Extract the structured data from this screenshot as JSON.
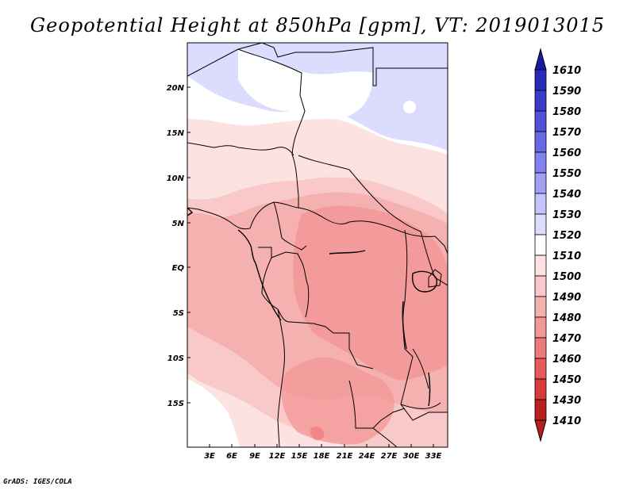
{
  "title": "Geopotential Height at 850hPa [gpm], VT: 2019013015",
  "footer": "GrADS: IGES/COLA",
  "map": {
    "lat_labels": [
      "20N",
      "15N",
      "10N",
      "5N",
      "EQ",
      "5S",
      "10S",
      "15S"
    ],
    "lon_labels": [
      "3E",
      "6E",
      "9E",
      "12E",
      "15E",
      "18E",
      "21E",
      "24E",
      "27E",
      "30E",
      "33E"
    ],
    "colors": {
      "c1410": "#9e1a1a",
      "c1430": "#b82020",
      "c1440": "#cf2a2a",
      "c1450": "#e03a3a",
      "c1460": "#e85a5a",
      "c1470": "#ee7a7a",
      "c1480": "#f29898",
      "c1490": "#f5b0b0",
      "c1500": "#f9c8c8",
      "c1510": "#fde2e2",
      "c1520": "#ffffff",
      "c1530": "#dcdcff",
      "c1540": "#c3c3ff",
      "c1550": "#a0a0f5",
      "c1560": "#7d7dea",
      "c1570": "#5c5cdd",
      "c1580": "#4040cc",
      "c1590": "#2a2ab8",
      "c1610": "#1a1aa0"
    }
  },
  "colorbar": {
    "levels": [
      "1610",
      "1590",
      "1580",
      "1570",
      "1560",
      "1550",
      "1540",
      "1530",
      "1520",
      "1510",
      "1500",
      "1490",
      "1480",
      "1470",
      "1460",
      "1450",
      "1430",
      "1410"
    ],
    "colors": [
      "#1a1aa0",
      "#2a2ab8",
      "#3a3ac8",
      "#5050d8",
      "#6868e4",
      "#8282ee",
      "#a0a0f5",
      "#c3c3ff",
      "#dcdcff",
      "#ffffff",
      "#fde2e2",
      "#f9c8c8",
      "#f5b0b0",
      "#f29898",
      "#ee7a7a",
      "#e85a5a",
      "#d83a3a",
      "#b82020"
    ]
  }
}
